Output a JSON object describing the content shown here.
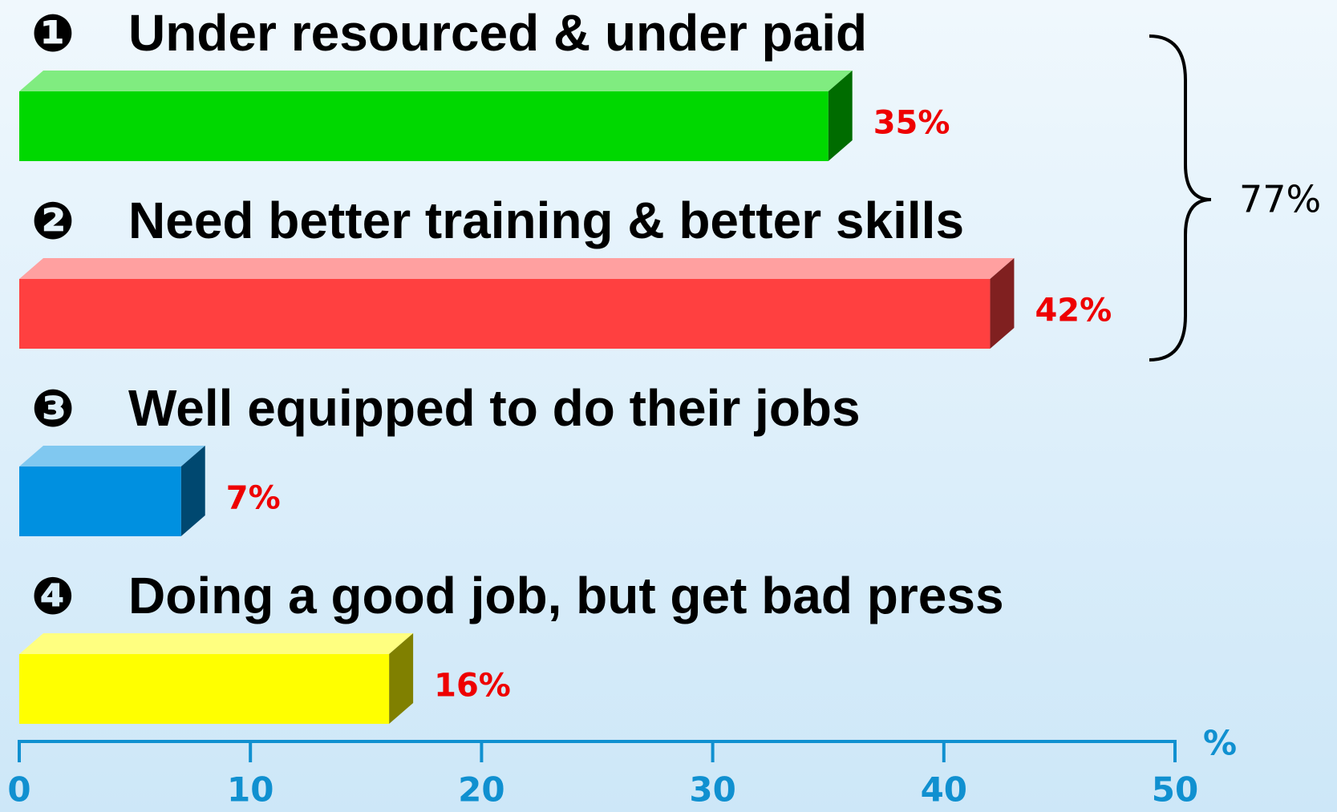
{
  "chart_data": {
    "type": "bar3d_horizontal",
    "markers": [
      "❶",
      "❷",
      "❸",
      "❹"
    ],
    "categories": [
      "Under resourced & under paid",
      "Need better training & better skills",
      "Well equipped to do their jobs",
      "Doing a good job, but get bad press"
    ],
    "values": [
      35,
      42,
      7,
      16
    ],
    "value_labels": [
      "35%",
      "42%",
      "7%",
      "16%"
    ],
    "colors": [
      "#00d800",
      "#ff4040",
      "#0090e0",
      "#ffff00"
    ],
    "xlim": [
      0,
      50
    ],
    "xticks": [
      0,
      10,
      20,
      30,
      40,
      50
    ],
    "x_axis_label": "%",
    "annotation": "77%"
  }
}
